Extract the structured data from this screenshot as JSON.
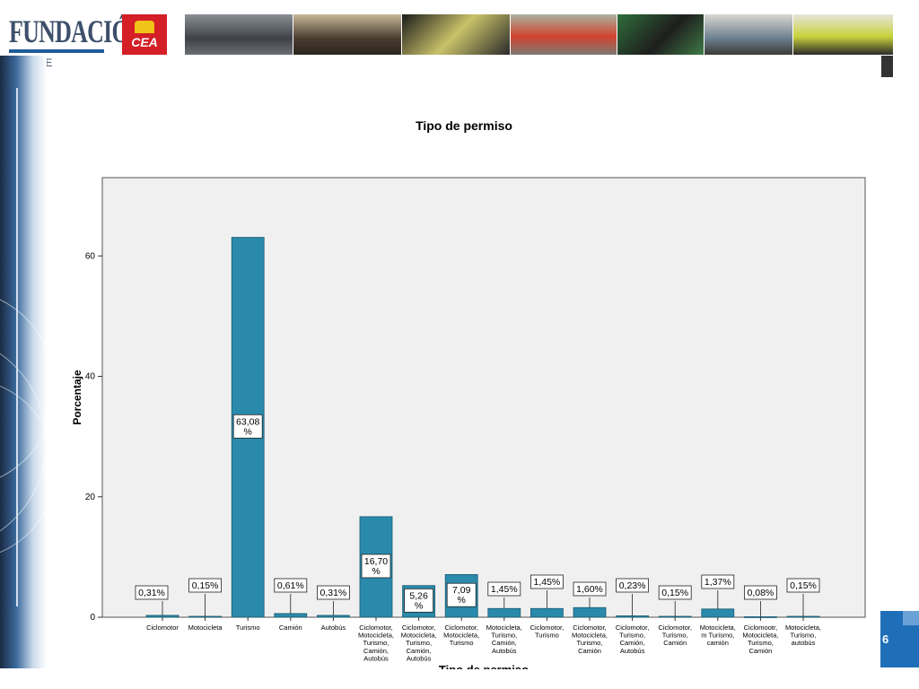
{
  "slide": {
    "logo_text": "FUNDACIÓN",
    "logo_subtext": "JOSE",
    "badge_text": "CEA",
    "page_number": "6"
  },
  "colors": {
    "bar": "#2a8aab",
    "plot_bg": "#f0f0f0",
    "accent": "#1f6fb8",
    "badge": "#d41f26"
  },
  "chart_data": {
    "type": "bar",
    "title": "Tipo de permiso",
    "xlabel": "Tipo de permiso",
    "ylabel": "Porcentaje",
    "ylim": [
      0,
      73
    ],
    "yticks": [
      0,
      20,
      40,
      60
    ],
    "grid": false,
    "categories": [
      "Ciclomotor",
      "Motocicleta",
      "Turismo",
      "Camión",
      "Autobús",
      "Ciclomotor, Motocicleta, Turismo, Camión, Autobús",
      "Ciclomotor, Motocicleta, Turismo, Camión, Autobús",
      "Ciclomotor, Motocicleta, Turismo",
      "Motocicleta, Turismo, Camión, Autobús",
      "Ciclomotor, Turismo",
      "Ciclomotor, Motocicleta, Turismo, Camión",
      "Ciclomotor, Turismo, Camión, Autobús",
      "Ciclomotor, Turismo, Camión",
      "Motocicleta, m Turismo, camión",
      "Ciclomootr, Motocicleta, Turismo, Camión",
      "Motocicleta, Turismo, autobús"
    ],
    "tick_label_lines": [
      [
        "Ciclomotor"
      ],
      [
        "Motocicleta"
      ],
      [
        "Turismo"
      ],
      [
        "Camión"
      ],
      [
        "Autobús"
      ],
      [
        "Ciclomotor,",
        "Motocicleta,",
        "Turismo,",
        "Camión,",
        "Autobús"
      ],
      [
        "Ciclomotor,",
        "Motocicleta,",
        "Turismo,",
        "Camión,",
        "Autobús"
      ],
      [
        "Ciclomotor,",
        "Motocicleta,",
        "Turismo"
      ],
      [
        "Motocicleta,",
        "Turismo,",
        "Camión,",
        "Autobús"
      ],
      [
        "Ciclomotor,",
        "Turismo"
      ],
      [
        "Ciclomotor,",
        "Motocicleta,",
        "Turismo,",
        "Camión"
      ],
      [
        "Ciclomotor,",
        "Turismo,",
        "Camión,",
        "Autobús"
      ],
      [
        "Ciclomotor,",
        "Turismo,",
        "Camión"
      ],
      [
        "Motocicleta,",
        "m Turismo,",
        "camión"
      ],
      [
        "Ciclomootr,",
        "Motocicleta,",
        "Turismo,",
        "Camión"
      ],
      [
        "Motocicleta,",
        "Turismo,",
        "autobús"
      ]
    ],
    "values": [
      0.31,
      0.15,
      63.08,
      0.61,
      0.31,
      16.7,
      5.26,
      7.09,
      1.45,
      1.45,
      1.6,
      0.23,
      0.15,
      1.37,
      0.08,
      0.15
    ],
    "data_labels": [
      "0,31%",
      "0,15%",
      "63,08 %",
      "0,61%",
      "0,31%",
      "16,70 %",
      "5,26 %",
      "7,09 %",
      "1,45%",
      "1,45%",
      "1,60%",
      "0,23%",
      "0,15%",
      "1,37%",
      "0,08%",
      "0,15%"
    ]
  }
}
